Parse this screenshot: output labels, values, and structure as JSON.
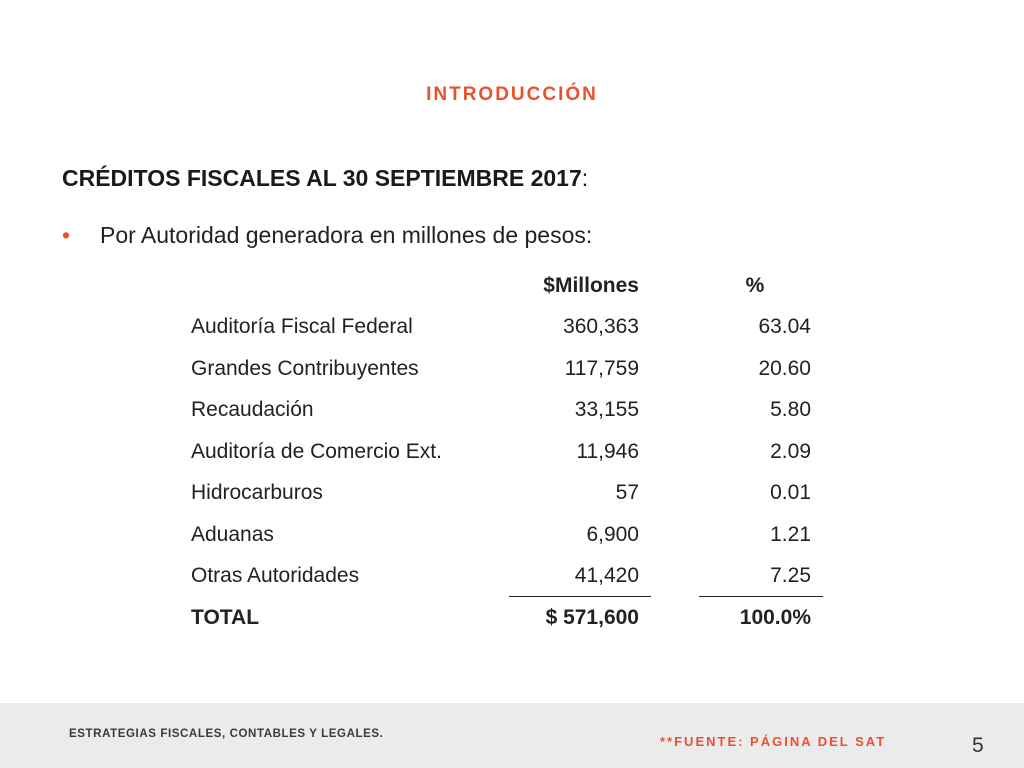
{
  "slide": {
    "section_label": "INTRODUCCIÓN",
    "heading_bold": "CRÉDITOS FISCALES AL 30 SEPTIEMBRE 2017",
    "heading_suffix": ":",
    "bullet_text": "Por Autoridad generadora en millones de pesos:",
    "bullet_glyph": "•"
  },
  "table": {
    "headers": {
      "millions": "$Millones",
      "percent": "%"
    },
    "rows": [
      {
        "name": "Auditoría Fiscal Federal",
        "millions": "360,363",
        "percent": "63.04"
      },
      {
        "name": "Grandes Contribuyentes",
        "millions": "117,759",
        "percent": "20.60"
      },
      {
        "name": "Recaudación",
        "millions": "33,155",
        "percent": "5.80"
      },
      {
        "name": "Auditoría de Comercio Ext.",
        "millions": "11,946",
        "percent": "2.09"
      },
      {
        "name": "Hidrocarburos",
        "millions": "57",
        "percent": "0.01"
      },
      {
        "name": "Aduanas",
        "millions": "6,900",
        "percent": "1.21"
      },
      {
        "name": "Otras Autoridades",
        "millions": "41,420",
        "percent": "7.25"
      }
    ],
    "total": {
      "name": "TOTAL",
      "millions": "$ 571,600",
      "percent": "100.0%"
    }
  },
  "footer": {
    "left_text": "ESTRATEGIAS FISCALES, CONTABLES Y LEGALES.",
    "source_text": "**FUENTE: PÁGINA DEL SAT",
    "page_number": "5"
  },
  "colors": {
    "accent": "#e8532d",
    "footer_bg": "#ebebeb",
    "text": "#222222"
  }
}
